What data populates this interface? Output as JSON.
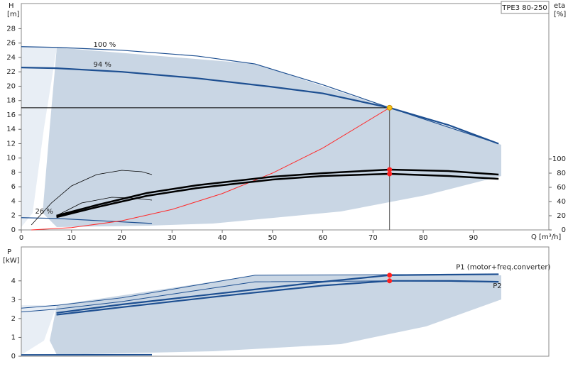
{
  "chart_data": [
    {
      "type": "line",
      "title": "TPE3 80-250",
      "y_label": "H",
      "y_unit": "[m]",
      "y2_label": "eta",
      "y2_unit": "[%]",
      "x_label": "Q [m³/h]",
      "xlim": [
        0,
        105
      ],
      "xticks": [
        0,
        10,
        20,
        30,
        40,
        50,
        60,
        70,
        80,
        90
      ],
      "ylim": [
        0,
        31.5
      ],
      "yticks": [
        0,
        2,
        4,
        6,
        8,
        10,
        12,
        14,
        16,
        18,
        20,
        22,
        24,
        26,
        28
      ],
      "y2lim": [
        0,
        319
      ],
      "y2ticks": [
        0,
        20,
        40,
        60,
        80,
        100
      ],
      "series": [
        {
          "name": "100 %",
          "color": "#1d4f91",
          "line_width": 1.2,
          "x": [
            0,
            7,
            20,
            35,
            46.5,
            60,
            73.3,
            85,
            95
          ],
          "values": [
            25.5,
            25.4,
            25.0,
            24.2,
            23.1,
            20.2,
            17.0,
            14.3,
            12.0
          ]
        },
        {
          "name": "94 %",
          "color": "#1d4f91",
          "line_width": 2.2,
          "x": [
            0,
            7,
            20,
            35,
            50,
            60,
            73.3,
            85,
            95
          ],
          "values": [
            22.6,
            22.5,
            22.0,
            21.1,
            19.9,
            19.0,
            17.0,
            14.6,
            12.0
          ]
        },
        {
          "name": "26 %",
          "color": "#1d4f91",
          "line_width": 1.2,
          "x": [
            0,
            7,
            15,
            26
          ],
          "values": [
            1.7,
            1.6,
            1.3,
            0.9
          ]
        },
        {
          "color": "#ff2a2a",
          "line_width": 1,
          "x": [
            2,
            10,
            20,
            30,
            40,
            50,
            60,
            73.3
          ],
          "values": [
            0.0,
            0.32,
            1.27,
            2.85,
            5.06,
            7.91,
            11.39,
            17.0
          ]
        },
        {
          "color": "#000000",
          "line_width": 2.5,
          "axis": "y2",
          "x": [
            7,
            15,
            25,
            35,
            50,
            60,
            73.3,
            85,
            95
          ],
          "values": [
            20,
            35,
            52,
            63,
            75,
            80,
            85,
            83,
            78
          ]
        },
        {
          "color": "#000000",
          "line_width": 2.5,
          "axis": "y2",
          "x": [
            7,
            15,
            25,
            35,
            50,
            60,
            73.3,
            85,
            95
          ],
          "values": [
            18,
            32,
            48,
            59,
            71,
            76,
            79,
            76,
            72
          ]
        },
        {
          "color": "#000000",
          "line_width": 0.8,
          "axis": "y2",
          "x": [
            2,
            6,
            10,
            15,
            20,
            24,
            26
          ],
          "values": [
            7,
            38,
            62,
            78,
            84,
            82,
            78
          ]
        },
        {
          "color": "#000000",
          "line_width": 0.8,
          "axis": "y2",
          "x": [
            7,
            12,
            18,
            22,
            26
          ],
          "values": [
            20,
            38,
            46,
            45,
            42
          ]
        }
      ],
      "points": [
        {
          "x": 73.3,
          "y": 17.0,
          "color": "#f5c518",
          "guides": true
        },
        {
          "x": 73.3,
          "y": 85,
          "color": "#ff2020",
          "axis": "y2"
        },
        {
          "x": 73.3,
          "y": 79,
          "color": "#ff2020",
          "axis": "y2"
        }
      ]
    },
    {
      "type": "line",
      "y_label": "P",
      "y_unit": "[kW]",
      "xlim": [
        0,
        105
      ],
      "ylim": [
        0,
        5.8
      ],
      "yticks": [
        0,
        1,
        2,
        3,
        4
      ],
      "series": [
        {
          "name": "P1 (motor+freq.converter)",
          "color": "#1d4f91",
          "line_width": 2.2,
          "x": [
            7,
            20,
            40,
            60,
            73.3,
            85,
            95
          ],
          "values": [
            2.3,
            2.75,
            3.35,
            3.95,
            4.3,
            4.33,
            4.35
          ]
        },
        {
          "name": "P2",
          "color": "#1d4f91",
          "line_width": 2.2,
          "x": [
            7,
            20,
            40,
            60,
            73.3,
            85,
            95
          ],
          "values": [
            2.2,
            2.6,
            3.2,
            3.75,
            4.0,
            4.0,
            3.95
          ]
        },
        {
          "color": "#1d4f91",
          "line_width": 1,
          "x": [
            0,
            7,
            20,
            46.5,
            73.3,
            95
          ],
          "values": [
            2.55,
            2.7,
            3.1,
            4.3,
            4.33,
            4.35
          ]
        },
        {
          "color": "#1d4f91",
          "line_width": 1,
          "x": [
            0,
            7,
            20,
            46.5,
            73.3,
            95
          ],
          "values": [
            2.35,
            2.5,
            2.9,
            3.95,
            4.0,
            3.95
          ]
        },
        {
          "color": "#1d4f91",
          "line_width": 2,
          "x": [
            0,
            26
          ],
          "values": [
            0.07,
            0.08
          ]
        }
      ],
      "points": [
        {
          "x": 73.3,
          "y": 4.3,
          "color": "#ff2020"
        },
        {
          "x": 73.3,
          "y": 4.0,
          "color": "#ff2020"
        }
      ]
    }
  ]
}
